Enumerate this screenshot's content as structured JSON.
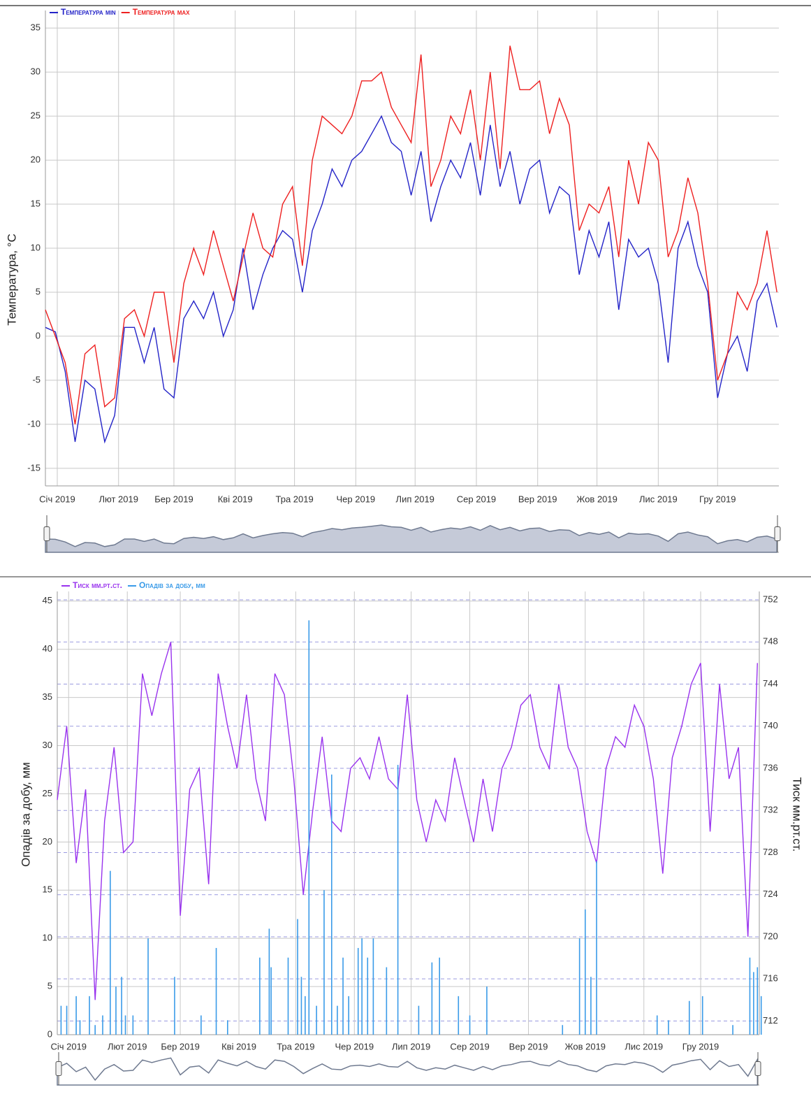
{
  "chart_data": [
    {
      "type": "line",
      "legend": "top-left",
      "ylabel": "Температура, °C",
      "xlim": [
        -5,
        366
      ],
      "xticks": [
        {
          "value": 1,
          "label": "Січ 2019"
        },
        {
          "value": 32,
          "label": "Лют 2019"
        },
        {
          "value": 60,
          "label": "Бер 2019"
        },
        {
          "value": 91,
          "label": "Кві 2019"
        },
        {
          "value": 121,
          "label": "Тра 2019"
        },
        {
          "value": 152,
          "label": "Чер 2019"
        },
        {
          "value": 182,
          "label": "Лип 2019"
        },
        {
          "value": 213,
          "label": "Сер 2019"
        },
        {
          "value": 244,
          "label": "Вер 2019"
        },
        {
          "value": 274,
          "label": "Жов 2019"
        },
        {
          "value": 305,
          "label": "Лис 2019"
        },
        {
          "value": 335,
          "label": "Гру 2019"
        }
      ],
      "ylim": [
        -17,
        37
      ],
      "yticks": [
        -15,
        -10,
        -5,
        0,
        5,
        10,
        15,
        20,
        25,
        30,
        35
      ],
      "grid": true,
      "x": [
        -5,
        0,
        5,
        10,
        15,
        20,
        25,
        30,
        35,
        40,
        45,
        50,
        55,
        60,
        65,
        70,
        75,
        80,
        85,
        90,
        95,
        100,
        105,
        110,
        115,
        120,
        125,
        130,
        135,
        140,
        145,
        150,
        155,
        160,
        165,
        170,
        175,
        180,
        185,
        190,
        195,
        200,
        205,
        210,
        215,
        220,
        225,
        230,
        235,
        240,
        245,
        250,
        255,
        260,
        265,
        270,
        275,
        280,
        285,
        290,
        295,
        300,
        305,
        310,
        315,
        320,
        325,
        330,
        335,
        340,
        345,
        350,
        355,
        360,
        365
      ],
      "series": [
        {
          "name": "Температура min",
          "color": "#2424c8",
          "values": [
            1,
            0.5,
            -4,
            -12,
            -5,
            -6,
            -12,
            -9,
            1,
            1,
            -3,
            1,
            -6,
            -7,
            2,
            4,
            2,
            5,
            0,
            3,
            10,
            3,
            7,
            10,
            12,
            11,
            5,
            12,
            15,
            19,
            17,
            20,
            21,
            23,
            25,
            22,
            21,
            16,
            21,
            13,
            17,
            20,
            18,
            22,
            16,
            24,
            17,
            21,
            15,
            19,
            20,
            14,
            17,
            16,
            7,
            12,
            9,
            13,
            3,
            11,
            9,
            10,
            6,
            -3,
            10,
            13,
            8,
            5,
            -7,
            -2,
            0,
            -4,
            4,
            6,
            1
          ]
        },
        {
          "name": "Температура max",
          "color": "#ee2020",
          "values": [
            3,
            0,
            -3,
            -10,
            -2,
            -1,
            -8,
            -7,
            2,
            3,
            0,
            5,
            5,
            -3,
            6,
            10,
            7,
            12,
            8,
            4,
            9,
            14,
            10,
            9,
            15,
            17,
            8,
            20,
            25,
            24,
            23,
            25,
            29,
            29,
            30,
            26,
            24,
            22,
            32,
            17,
            20,
            25,
            23,
            28,
            20,
            30,
            19,
            33,
            28,
            28,
            29,
            23,
            27,
            24,
            12,
            15,
            14,
            17,
            9,
            20,
            15,
            22,
            20,
            9,
            12,
            18,
            14,
            6,
            -5,
            -2,
            5,
            3,
            6,
            12,
            5
          ]
        }
      ]
    },
    {
      "type": "combo",
      "legend": "top-left",
      "ylabel": "Опадів за добу, мм",
      "y2label": "Тиск мм.рт.ст.",
      "xlim": [
        -5,
        366
      ],
      "xticks": [
        {
          "value": 1,
          "label": "Січ 2019"
        },
        {
          "value": 32,
          "label": "Лют 2019"
        },
        {
          "value": 60,
          "label": "Бер 2019"
        },
        {
          "value": 91,
          "label": "Кві 2019"
        },
        {
          "value": 121,
          "label": "Тра 2019"
        },
        {
          "value": 152,
          "label": "Чер 2019"
        },
        {
          "value": 182,
          "label": "Лип 2019"
        },
        {
          "value": 213,
          "label": "Сер 2019"
        },
        {
          "value": 244,
          "label": "Вер 2019"
        },
        {
          "value": 274,
          "label": "Жов 2019"
        },
        {
          "value": 305,
          "label": "Лис 2019"
        },
        {
          "value": 335,
          "label": "Гру 2019"
        }
      ],
      "ylim": [
        0,
        46
      ],
      "yticks": [
        0,
        5,
        10,
        15,
        20,
        25,
        30,
        35,
        40,
        45
      ],
      "y2lim": [
        710.7,
        752.8
      ],
      "y2ticks": [
        712,
        716,
        720,
        724,
        728,
        732,
        736,
        740,
        744,
        748,
        752
      ],
      "grid": true,
      "series": [
        {
          "name": "Тиск мм.рт.ст.",
          "color": "#9933ee",
          "axis": "y2",
          "kind": "line",
          "x": [
            -5,
            0,
            5,
            10,
            15,
            20,
            25,
            30,
            35,
            40,
            45,
            50,
            55,
            60,
            65,
            70,
            75,
            80,
            85,
            90,
            95,
            100,
            105,
            110,
            115,
            120,
            125,
            130,
            135,
            140,
            145,
            150,
            155,
            160,
            165,
            170,
            175,
            180,
            185,
            190,
            195,
            200,
            205,
            210,
            215,
            220,
            225,
            230,
            235,
            240,
            245,
            250,
            255,
            260,
            265,
            270,
            275,
            280,
            285,
            290,
            295,
            300,
            305,
            310,
            315,
            320,
            325,
            330,
            335,
            340,
            345,
            350,
            355,
            360,
            365
          ],
          "values": [
            733,
            740,
            727,
            734,
            714,
            731,
            738,
            728,
            729,
            745,
            741,
            745,
            748,
            722,
            734,
            736,
            725,
            745,
            740,
            736,
            743,
            735,
            731,
            745,
            743,
            735,
            724,
            732,
            739,
            731,
            730,
            736,
            737,
            735,
            739,
            735,
            734,
            743,
            733,
            729,
            733,
            731,
            737,
            733,
            729,
            735,
            730,
            736,
            738,
            742,
            743,
            738,
            736,
            744,
            738,
            736,
            730,
            727,
            736,
            739,
            738,
            742,
            740,
            735,
            726,
            737,
            740,
            744,
            746,
            730,
            744,
            735,
            738,
            720,
            746
          ]
        },
        {
          "name": "Опадів за добу, мм",
          "color": "#3a9be8",
          "kind": "bar",
          "x": [
            -3,
            0,
            5,
            7,
            12,
            15,
            19,
            23,
            26,
            29,
            31,
            35,
            43,
            57,
            71,
            79,
            85,
            102,
            107,
            108,
            117,
            122,
            124,
            126,
            128,
            132,
            136,
            140,
            143,
            146,
            149,
            154,
            156,
            159,
            162,
            169,
            175,
            186,
            193,
            197,
            207,
            213,
            222,
            262,
            271,
            274,
            277,
            280,
            312,
            318,
            329,
            336,
            352,
            361,
            363,
            365,
            367
          ],
          "values": [
            3,
            3,
            4,
            1.5,
            4,
            1,
            2,
            17,
            5,
            6,
            2,
            2,
            10,
            6,
            2,
            9,
            1.5,
            8,
            11,
            7,
            8,
            12,
            6,
            4,
            43,
            3,
            15,
            27,
            3,
            8,
            4,
            9,
            10,
            8,
            10,
            7,
            28,
            3,
            7.5,
            8,
            4,
            2,
            5,
            1,
            10,
            13,
            6,
            18,
            2,
            1.5,
            3.5,
            4,
            1,
            8,
            6.5,
            7,
            4
          ]
        }
      ]
    }
  ]
}
